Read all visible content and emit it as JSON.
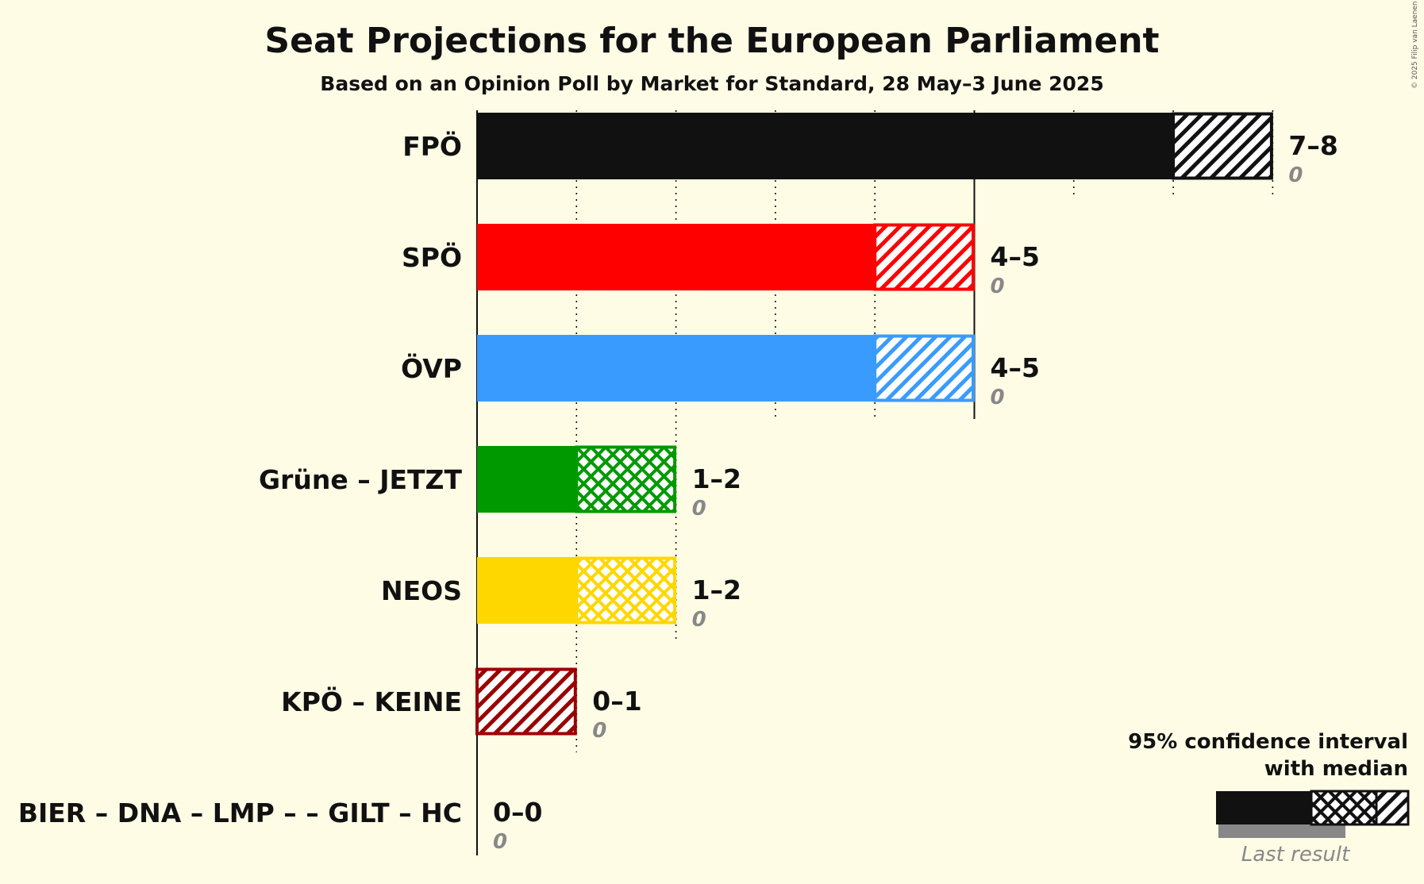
{
  "chart_data": {
    "type": "bar",
    "title": "Seat Projections for the European Parliament",
    "subtitle": "Based on an Opinion Poll by Market for Standard, 28 May–3 June 2025",
    "copyright": "© 2025 Filip van Laenen",
    "x_range": [
      0,
      8
    ],
    "grid": "dotted vertical lines at each seat, solid at every 5 seats",
    "legend": {
      "position": "bottom-right",
      "line1": "95% confidence interval",
      "line2": "with median",
      "last_result_label": "Last result"
    },
    "categories": [
      "FPÖ",
      "SPÖ",
      "ÖVP",
      "Grüne – JETZT",
      "NEOS",
      "KPÖ – KEINE",
      "BIER – DNA – LMP – – GILT – HC"
    ],
    "series": [
      {
        "party": "FPÖ",
        "low": 7,
        "high": 8,
        "range_label": "7–8",
        "last_result": "0",
        "color": "#111111",
        "pattern": "hatch"
      },
      {
        "party": "SPÖ",
        "low": 4,
        "high": 5,
        "range_label": "4–5",
        "last_result": "0",
        "color": "#ff0000",
        "pattern": "hatch"
      },
      {
        "party": "ÖVP",
        "low": 4,
        "high": 5,
        "range_label": "4–5",
        "last_result": "0",
        "color": "#3a9bff",
        "pattern": "hatch"
      },
      {
        "party": "Grüne – JETZT",
        "low": 1,
        "high": 2,
        "range_label": "1–2",
        "last_result": "0",
        "color": "#009900",
        "pattern": "cross"
      },
      {
        "party": "NEOS",
        "low": 1,
        "high": 2,
        "range_label": "1–2",
        "last_result": "0",
        "color": "#ffd700",
        "pattern": "cross"
      },
      {
        "party": "KPÖ – KEINE",
        "low": 0,
        "high": 1,
        "range_label": "0–1",
        "last_result": "0",
        "color": "#990000",
        "pattern": "hatch"
      },
      {
        "party": "BIER – DNA – LMP – – GILT – HC",
        "low": 0,
        "high": 0,
        "range_label": "0–0",
        "last_result": "0",
        "color": "#888888",
        "pattern": "none"
      }
    ]
  }
}
